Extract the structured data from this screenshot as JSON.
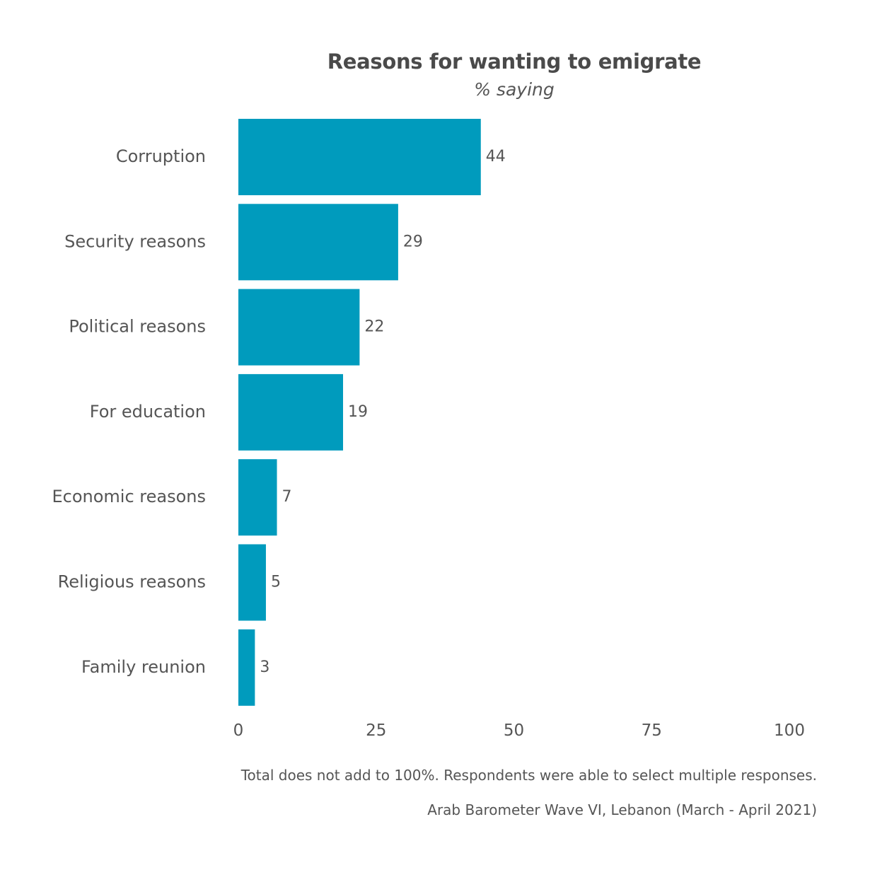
{
  "chart_data": {
    "type": "bar",
    "orientation": "horizontal",
    "title": "Reasons for wanting to emigrate",
    "subtitle": "% saying",
    "categories": [
      "Corruption",
      "Security reasons",
      "Political reasons",
      "For education",
      "Economic reasons",
      "Religious reasons",
      "Family reunion"
    ],
    "values": [
      44,
      29,
      22,
      19,
      7,
      5,
      3
    ],
    "xlim": [
      0,
      100
    ],
    "xticks": [
      0,
      25,
      50,
      75,
      100
    ],
    "xlabel": "",
    "ylabel": "",
    "grid": false,
    "bar_color": "#009bbd",
    "note": "Total does not add to 100%. Respondents were able to select multiple responses.",
    "source": "Arab Barometer Wave VI, Lebanon (March - April 2021)"
  }
}
